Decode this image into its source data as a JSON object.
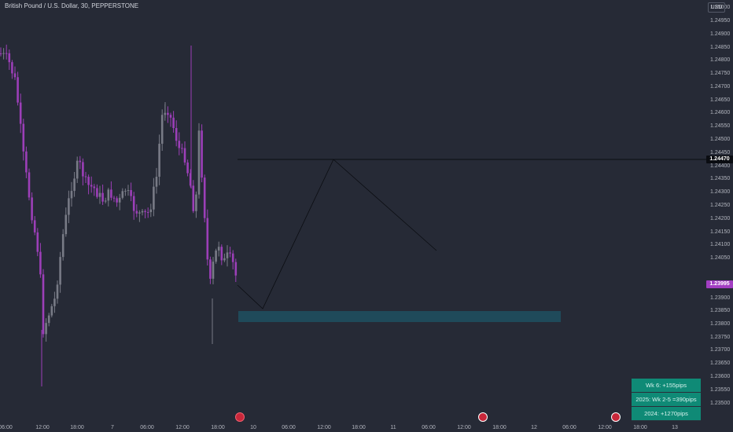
{
  "header": {
    "symbol_title": "British Pound / U.S. Dollar, 30, PEPPERSTONE",
    "currency_button": "USD"
  },
  "price_axis": {
    "labels": [
      "1.25000",
      "1.24950",
      "1.24900",
      "1.24850",
      "1.24800",
      "1.24750",
      "1.24700",
      "1.24650",
      "1.24600",
      "1.24550",
      "1.24500",
      "1.24450",
      "1.24400",
      "1.24350",
      "1.24300",
      "1.24250",
      "1.24200",
      "1.24150",
      "1.24100",
      "1.24050",
      "1.23950",
      "1.23900",
      "1.23850",
      "1.23800",
      "1.23750",
      "1.23700",
      "1.23650",
      "1.23600",
      "1.23550",
      "1.23500"
    ],
    "horizontal_line_price": "1.24470",
    "last_price": "1.23995"
  },
  "time_axis": {
    "labels": [
      "06:00",
      "12:00",
      "18:00",
      "7",
      "06:00",
      "12:00",
      "18:00",
      "10",
      "06:00",
      "12:00",
      "18:00",
      "11",
      "06:00",
      "12:00",
      "18:00",
      "12",
      "06:00",
      "12:00",
      "18:00",
      "13"
    ]
  },
  "drawing": {
    "zone_low": 1.2386,
    "zone_high": 1.2389,
    "projection_prices": [
      1.23995,
      1.2388,
      1.2447,
      1.2413
    ]
  },
  "stats_table": {
    "rows": [
      "Wk 6: +155pips",
      "2025: Wk 2-5  =390pips",
      "2024: +1270pips"
    ]
  },
  "colors": {
    "background": "#262a36",
    "bull_candle": "#787b86",
    "bear_candle": "#9c3fb8",
    "zone": "#1f4a5a",
    "stats_bg": "#0f8a76"
  },
  "icons": [
    "economic-event-icon",
    "uk-flag-icon",
    "uk-flag-icon"
  ]
}
